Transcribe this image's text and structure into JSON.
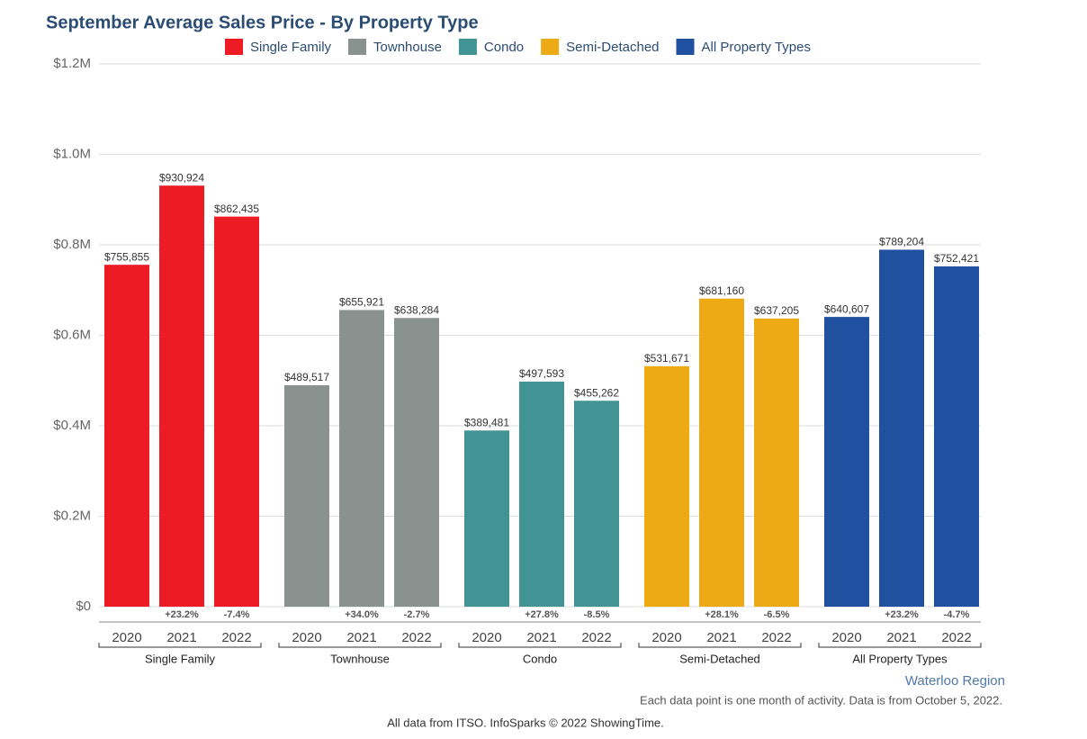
{
  "chart_data": {
    "type": "grouped-bar",
    "title": "September Average Sales Price - By Property Type",
    "categories": [
      "2020",
      "2021",
      "2022"
    ],
    "series": [
      {
        "name": "Single Family",
        "color": "#ed1c24",
        "values": [
          755855,
          930924,
          862435
        ],
        "value_labels": [
          "$755,855",
          "$930,924",
          "$862,435"
        ],
        "change_labels": [
          null,
          "+23.2%",
          "-7.4%"
        ]
      },
      {
        "name": "Townhouse",
        "color": "#8a9290",
        "values": [
          489517,
          655921,
          638284
        ],
        "value_labels": [
          "$489,517",
          "$655,921",
          "$638,284"
        ],
        "change_labels": [
          null,
          "+34.0%",
          "-2.7%"
        ]
      },
      {
        "name": "Condo",
        "color": "#429393",
        "values": [
          389481,
          497593,
          455262
        ],
        "value_labels": [
          "$389,481",
          "$497,593",
          "$455,262"
        ],
        "change_labels": [
          null,
          "+27.8%",
          "-8.5%"
        ]
      },
      {
        "name": "Semi-Detached",
        "color": "#eeaa14",
        "values": [
          531671,
          681160,
          637205
        ],
        "value_labels": [
          "$531,671",
          "$681,160",
          "$637,205"
        ],
        "change_labels": [
          null,
          "+28.1%",
          "-6.5%"
        ]
      },
      {
        "name": "All Property Types",
        "color": "#1f51a0",
        "values": [
          640607,
          789204,
          752421
        ],
        "value_labels": [
          "$640,607",
          "$789,204",
          "$752,421"
        ],
        "change_labels": [
          null,
          "+23.2%",
          "-4.7%"
        ]
      }
    ],
    "ylim": [
      0,
      1200000
    ],
    "yticks": [
      {
        "value": 0,
        "label": "$0"
      },
      {
        "value": 200000,
        "label": "$0.2M"
      },
      {
        "value": 400000,
        "label": "$0.4M"
      },
      {
        "value": 600000,
        "label": "$0.6M"
      },
      {
        "value": 800000,
        "label": "$0.8M"
      },
      {
        "value": 1000000,
        "label": "$1.0M"
      },
      {
        "value": 1200000,
        "label": "$1.2M"
      }
    ],
    "grid": true,
    "region": "Waterloo Region",
    "note": "Each data point is one month of activity. Data is from October 5, 2022.",
    "source": "All data from ITSO. InfoSparks © 2022 ShowingTime."
  }
}
